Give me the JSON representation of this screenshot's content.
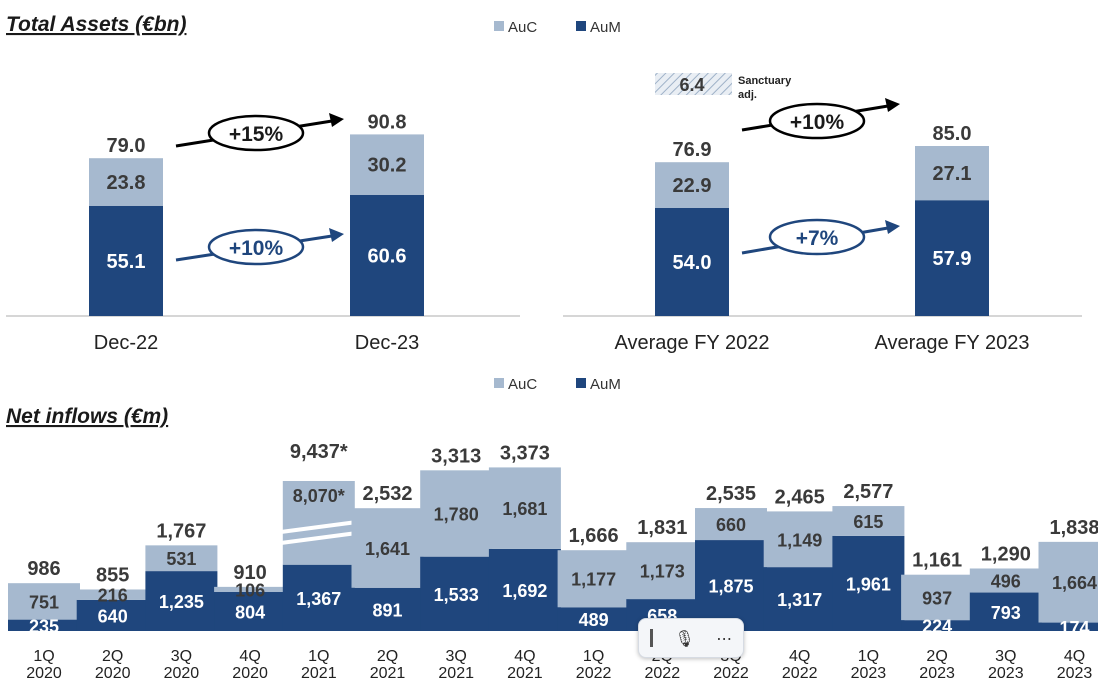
{
  "colors": {
    "auc": "#a6b9cf",
    "aum": "#1f467d",
    "arrow_black": "#000000",
    "arrow_blue": "#1f467d",
    "axis": "#c8c8c8"
  },
  "legend": {
    "auc": "AuC",
    "aum": "AuM"
  },
  "chart_data": [
    {
      "type": "bar",
      "stacked": true,
      "title": "Total Assets (€bn)",
      "categories": [
        "Dec-22",
        "Dec-23"
      ],
      "series": [
        {
          "name": "AuM",
          "values": [
            55.1,
            60.6
          ]
        },
        {
          "name": "AuC",
          "values": [
            23.8,
            30.2
          ]
        }
      ],
      "totals": [
        "79.0",
        "90.8"
      ],
      "value_labels": {
        "AuM": [
          "55.1",
          "60.6"
        ],
        "AuC": [
          "23.8",
          "30.2"
        ]
      },
      "annotations": {
        "auc_growth": "+15%",
        "aum_growth": "+10%"
      },
      "legend_position": "top"
    },
    {
      "type": "bar",
      "stacked": true,
      "categories": [
        "Average FY 2022",
        "Average FY 2023"
      ],
      "series": [
        {
          "name": "AuM",
          "values": [
            54.0,
            57.9
          ]
        },
        {
          "name": "AuC",
          "values": [
            22.9,
            27.1
          ]
        }
      ],
      "totals": [
        "76.9",
        "85.0"
      ],
      "value_labels": {
        "AuM": [
          "54.0",
          "57.9"
        ],
        "AuC": [
          "22.9",
          "27.1"
        ]
      },
      "annotations": {
        "auc_growth": "+10%",
        "aum_growth": "+7%",
        "sanctuary_value": "6.4",
        "sanctuary_label_1": "Sanctuary",
        "sanctuary_label_2": "adj."
      }
    },
    {
      "type": "bar",
      "stacked": true,
      "title": "Net inflows (€m)",
      "categories": [
        [
          "1Q",
          "2020"
        ],
        [
          "2Q",
          "2020"
        ],
        [
          "3Q",
          "2020"
        ],
        [
          "4Q",
          "2020"
        ],
        [
          "1Q",
          "2021"
        ],
        [
          "2Q",
          "2021"
        ],
        [
          "3Q",
          "2021"
        ],
        [
          "4Q",
          "2021"
        ],
        [
          "1Q",
          "2022"
        ],
        [
          "2Q",
          "2022"
        ],
        [
          "3Q",
          "2022"
        ],
        [
          "4Q",
          "2022"
        ],
        [
          "1Q",
          "2023"
        ],
        [
          "2Q",
          "2023"
        ],
        [
          "3Q",
          "2023"
        ],
        [
          "4Q",
          "2023"
        ]
      ],
      "series": [
        {
          "name": "AuM",
          "values": [
            235,
            640,
            1235,
            804,
            1367,
            891,
            1533,
            1692,
            489,
            658,
            1875,
            1317,
            1961,
            224,
            793,
            174
          ]
        },
        {
          "name": "AuC",
          "values": [
            751,
            216,
            531,
            106,
            8070,
            1641,
            1780,
            1681,
            1177,
            1173,
            660,
            1149,
            615,
            937,
            496,
            1664
          ]
        }
      ],
      "value_labels": {
        "AuM": [
          "235",
          "640",
          "1,235",
          "804",
          "1,367",
          "891",
          "1,533",
          "1,692",
          "489",
          "658",
          "1,875",
          "1,317",
          "1,961",
          "224",
          "793",
          "174"
        ],
        "AuC": [
          "751",
          "216",
          "531",
          "106",
          "8,070*",
          "1,641",
          "1,780",
          "1,681",
          "1,177",
          "1,173",
          "660",
          "1,149",
          "615",
          "937",
          "496",
          "1,664"
        ]
      },
      "totals": [
        "986",
        "855",
        "1,767",
        "910",
        "9,437*",
        "2,532",
        "3,313",
        "3,373",
        "1,666",
        "1,831",
        "2,535",
        "2,465",
        "2,577",
        "1,161",
        "1,290",
        "1,838"
      ],
      "axis_break_index": 4,
      "legend_position": "top"
    }
  ]
}
